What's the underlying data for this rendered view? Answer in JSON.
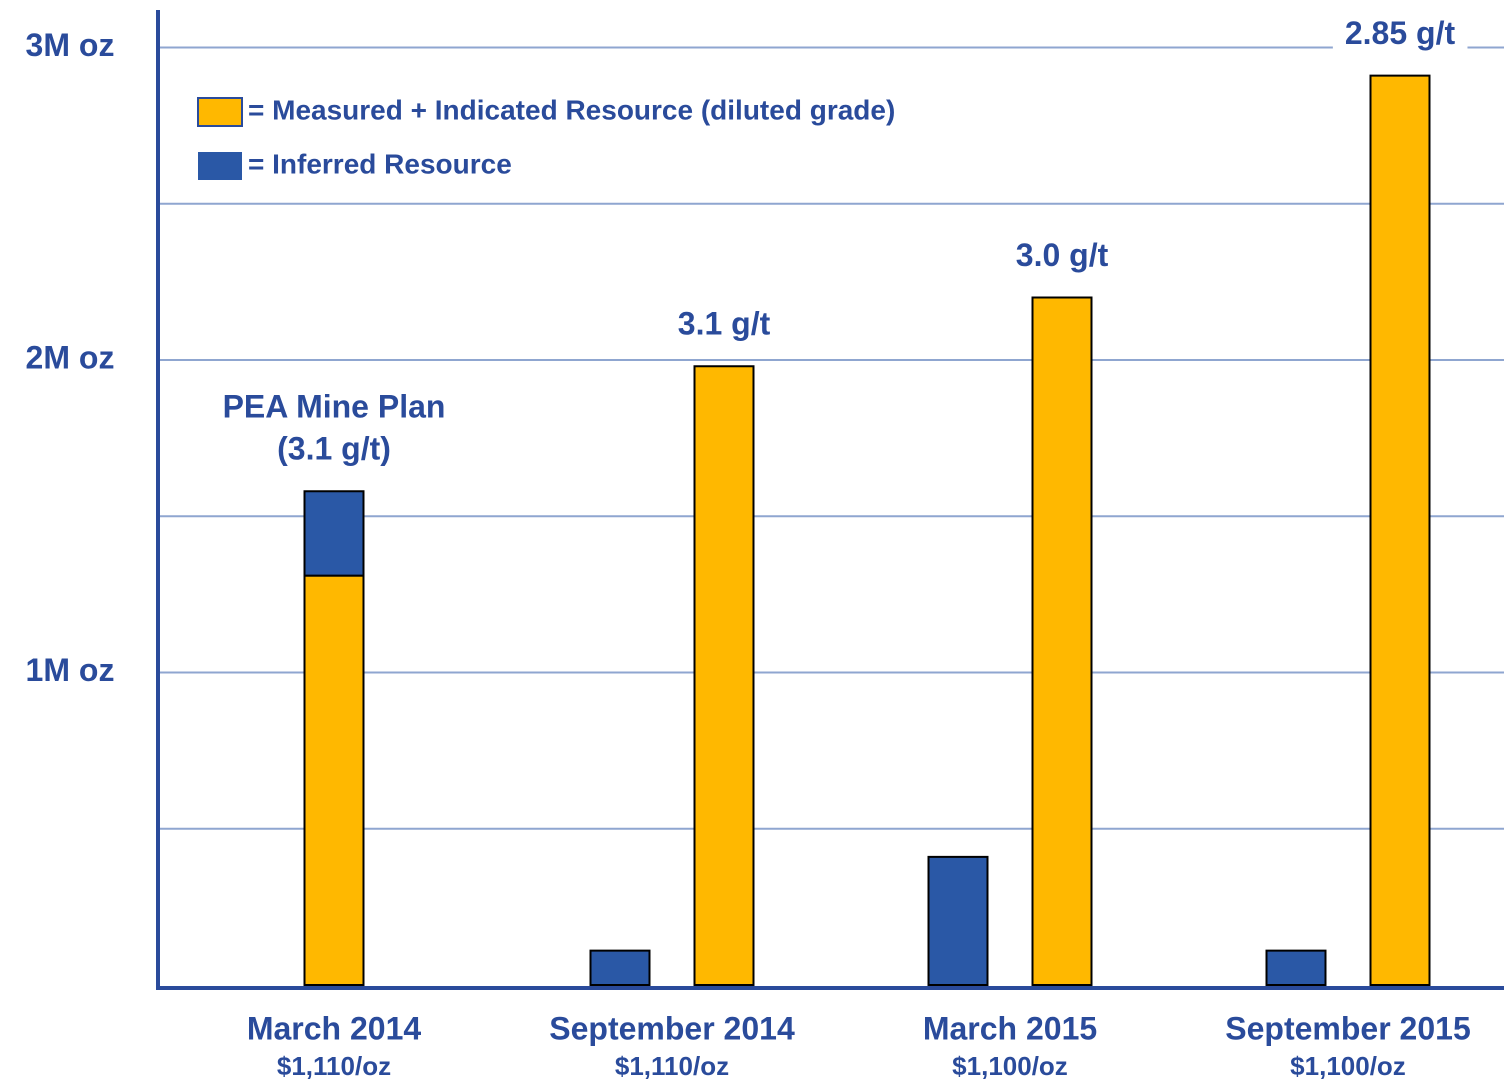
{
  "chart_data": {
    "type": "bar",
    "categories": [
      "March 2014",
      "September 2014",
      "March 2015",
      "September 2015"
    ],
    "prices": [
      "$1,110/oz",
      "$1,110/oz",
      "$1,100/oz",
      "$1,100/oz"
    ],
    "stacked": [
      true,
      false,
      false,
      false
    ],
    "series": [
      {
        "name": "= Measured + Indicated Resource (diluted grade)",
        "color": "#FFB800",
        "values": [
          1.31,
          1.98,
          2.2,
          2.91
        ]
      },
      {
        "name": "= Inferred Resource",
        "color": "#2A58A6",
        "values": [
          0.27,
          0.11,
          0.41,
          0.11
        ]
      }
    ],
    "annotations": [
      [
        "PEA Mine Plan",
        "(3.1 g/t)"
      ],
      [
        "3.1 g/t"
      ],
      [
        "3.0 g/t"
      ],
      [
        "2.85 g/t"
      ]
    ],
    "ylim": [
      0,
      3.12
    ],
    "yticks": [
      {
        "value": 1,
        "label": "1M oz"
      },
      {
        "value": 2,
        "label": "2M oz"
      },
      {
        "value": 3,
        "label": "3M oz"
      }
    ],
    "minor_yticks": [
      0.5,
      1.5,
      2.5
    ],
    "grid": true
  }
}
